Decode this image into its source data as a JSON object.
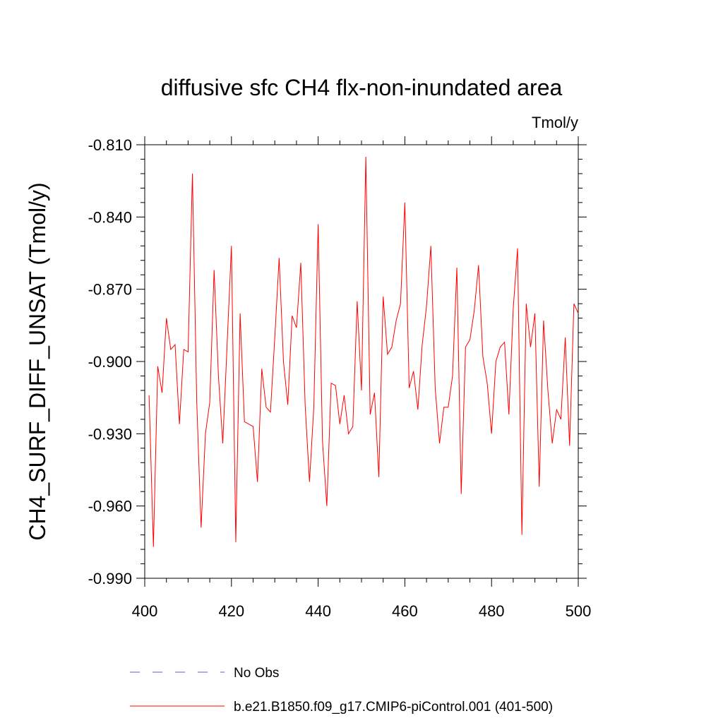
{
  "chart_data": {
    "type": "line",
    "title": "diffusive sfc CH4 flx-non-inundated area",
    "units": "Tmol/y",
    "xlabel": "",
    "ylabel": "CH4_SURF_DIFF_UNSAT  (Tmol/y)",
    "xlim": [
      400,
      500
    ],
    "ylim": [
      -0.99,
      -0.81
    ],
    "xticks": [
      400,
      420,
      440,
      460,
      480,
      500
    ],
    "xtick_labels": [
      "400",
      "420",
      "440",
      "460",
      "480",
      "500"
    ],
    "yticks": [
      -0.81,
      -0.84,
      -0.87,
      -0.9,
      -0.93,
      -0.96,
      -0.99
    ],
    "ytick_labels": [
      "-0.810",
      "-0.840",
      "-0.870",
      "-0.900",
      "-0.930",
      "-0.960",
      "-0.990"
    ],
    "grid": false,
    "legend_position": "bottom",
    "series": [
      {
        "name": "No Obs",
        "color": "#6a5acd",
        "dash": "dashed",
        "x": [],
        "values": []
      },
      {
        "name": "b.e21.B1850.f09_g17.CMIP6-piControl.001 (401-500)",
        "color": "#ff0000",
        "dash": "solid",
        "x": [
          401,
          402,
          403,
          404,
          405,
          406,
          407,
          408,
          409,
          410,
          411,
          412,
          413,
          414,
          415,
          416,
          417,
          418,
          419,
          420,
          421,
          422,
          423,
          424,
          425,
          426,
          427,
          428,
          429,
          430,
          431,
          432,
          433,
          434,
          435,
          436,
          437,
          438,
          439,
          440,
          441,
          442,
          443,
          444,
          445,
          446,
          447,
          448,
          449,
          450,
          451,
          452,
          453,
          454,
          455,
          456,
          457,
          458,
          459,
          460,
          461,
          462,
          463,
          464,
          465,
          466,
          467,
          468,
          469,
          470,
          471,
          472,
          473,
          474,
          475,
          476,
          477,
          478,
          479,
          480,
          481,
          482,
          483,
          484,
          485,
          486,
          487,
          488,
          489,
          490,
          491,
          492,
          493,
          494,
          495,
          496,
          497,
          498,
          499,
          500
        ],
        "values": [
          -0.914,
          -0.977,
          -0.902,
          -0.913,
          -0.882,
          -0.895,
          -0.893,
          -0.926,
          -0.895,
          -0.896,
          -0.822,
          -0.917,
          -0.969,
          -0.93,
          -0.917,
          -0.862,
          -0.906,
          -0.934,
          -0.893,
          -0.852,
          -0.975,
          -0.88,
          -0.925,
          -0.926,
          -0.927,
          -0.95,
          -0.903,
          -0.919,
          -0.921,
          -0.89,
          -0.857,
          -0.9,
          -0.918,
          -0.881,
          -0.886,
          -0.859,
          -0.918,
          -0.95,
          -0.919,
          -0.843,
          -0.933,
          -0.96,
          -0.909,
          -0.91,
          -0.926,
          -0.914,
          -0.93,
          -0.927,
          -0.875,
          -0.912,
          -0.815,
          -0.922,
          -0.913,
          -0.948,
          -0.873,
          -0.897,
          -0.894,
          -0.883,
          -0.876,
          -0.834,
          -0.911,
          -0.904,
          -0.92,
          -0.893,
          -0.877,
          -0.852,
          -0.911,
          -0.934,
          -0.919,
          -0.919,
          -0.906,
          -0.861,
          -0.955,
          -0.894,
          -0.891,
          -0.879,
          -0.86,
          -0.898,
          -0.909,
          -0.93,
          -0.9,
          -0.894,
          -0.892,
          -0.922,
          -0.878,
          -0.853,
          -0.972,
          -0.876,
          -0.894,
          -0.88,
          -0.952,
          -0.883,
          -0.912,
          -0.934,
          -0.92,
          -0.924,
          -0.89,
          -0.935,
          -0.876,
          -0.88
        ]
      }
    ]
  }
}
